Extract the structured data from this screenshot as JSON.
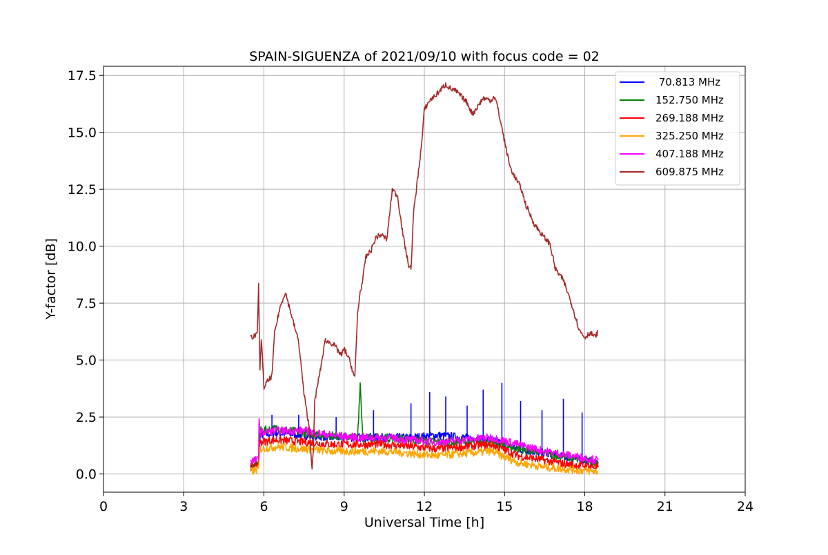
{
  "chart_data": {
    "type": "line",
    "title": "SPAIN-SIGUENZA of 2021/09/10 with focus code = 02",
    "xlabel": "Universal Time [h]",
    "ylabel": "Y-factor [dB]",
    "xlim": [
      0,
      24
    ],
    "ylim": [
      -0.8,
      17.9
    ],
    "xticks": [
      0,
      3,
      6,
      9,
      12,
      15,
      18,
      21,
      24
    ],
    "xtick_labels": [
      "0",
      "3",
      "6",
      "9",
      "12",
      "15",
      "18",
      "21",
      "24"
    ],
    "yticks": [
      0,
      2.5,
      5,
      7.5,
      10,
      12.5,
      15,
      17.5
    ],
    "ytick_labels": [
      "0.0",
      "2.5",
      "5.0",
      "7.5",
      "10.0",
      "12.5",
      "15.0",
      "17.5"
    ],
    "grid": true,
    "legend_position": "top-right",
    "series": [
      {
        "name": " 70.813 MHz",
        "color": "#0000ff",
        "x": [
          5.5,
          5.8,
          5.85,
          6.5,
          7.5,
          8.5,
          9.5,
          10.5,
          11.5,
          12.5,
          13.5,
          14.5,
          15.5,
          16.5,
          17.5,
          18.5
        ],
        "y": [
          0.3,
          0.4,
          1.7,
          1.8,
          1.7,
          1.6,
          1.6,
          1.6,
          1.6,
          1.7,
          1.6,
          1.5,
          1.1,
          0.9,
          0.7,
          0.5
        ],
        "spikes": [
          [
            6.3,
            2.6
          ],
          [
            7.3,
            2.6
          ],
          [
            8.7,
            2.5
          ],
          [
            10.1,
            2.8
          ],
          [
            11.5,
            3.1
          ],
          [
            12.2,
            3.6
          ],
          [
            12.8,
            3.4
          ],
          [
            13.6,
            3.0
          ],
          [
            14.2,
            3.7
          ],
          [
            14.9,
            4.0
          ],
          [
            15.6,
            3.2
          ],
          [
            16.4,
            2.8
          ],
          [
            17.2,
            3.3
          ],
          [
            17.9,
            2.7
          ]
        ]
      },
      {
        "name": "152.750 MHz",
        "color": "#008000",
        "x": [
          5.5,
          5.8,
          5.85,
          6.5,
          7.5,
          8.5,
          9.5,
          9.6,
          9.7,
          10.5,
          11.5,
          12.5,
          13.5,
          14.5,
          15.5,
          16.5,
          17.5,
          18.5
        ],
        "y": [
          0.3,
          0.4,
          1.9,
          2.0,
          1.8,
          1.7,
          1.6,
          4.0,
          1.6,
          1.6,
          1.5,
          1.4,
          1.4,
          1.4,
          1.1,
          0.9,
          0.7,
          0.5
        ],
        "spikes": []
      },
      {
        "name": "269.188 MHz",
        "color": "#ff0000",
        "x": [
          5.5,
          5.8,
          5.85,
          6.5,
          7.5,
          8.5,
          9.5,
          10.5,
          11.5,
          12.5,
          13.5,
          14.5,
          15.5,
          16.5,
          17.5,
          18.5
        ],
        "y": [
          0.3,
          0.4,
          1.4,
          1.5,
          1.4,
          1.3,
          1.3,
          1.3,
          1.2,
          1.1,
          1.2,
          1.3,
          0.8,
          0.6,
          0.4,
          0.3
        ],
        "spikes": []
      },
      {
        "name": "325.250 MHz",
        "color": "#ffa500",
        "x": [
          5.5,
          5.8,
          5.85,
          6.5,
          7.5,
          8.5,
          9.5,
          10.5,
          11.5,
          12.5,
          13.5,
          14.5,
          15.5,
          16.5,
          17.5,
          18.5
        ],
        "y": [
          0.1,
          0.2,
          1.1,
          1.2,
          1.1,
          1.0,
          1.0,
          1.0,
          0.9,
          0.8,
          0.9,
          1.0,
          0.5,
          0.3,
          0.2,
          0.1
        ],
        "spikes": []
      },
      {
        "name": "407.188 MHz",
        "color": "#ff00ff",
        "x": [
          5.5,
          5.8,
          5.82,
          5.85,
          6.5,
          7.5,
          8.5,
          9.5,
          10.5,
          11.5,
          12.5,
          13.5,
          14.5,
          15.5,
          16.5,
          17.5,
          18.5
        ],
        "y": [
          0.6,
          0.6,
          2.6,
          1.8,
          1.9,
          1.9,
          1.7,
          1.6,
          1.6,
          1.5,
          1.4,
          1.5,
          1.6,
          1.3,
          1.0,
          0.8,
          0.6
        ],
        "spikes": []
      },
      {
        "name": "609.875 MHz",
        "color": "#a52a2a",
        "x": [
          5.5,
          5.75,
          5.8,
          5.85,
          5.9,
          6.0,
          6.1,
          6.3,
          6.4,
          6.6,
          6.8,
          7.0,
          7.3,
          7.5,
          7.7,
          7.8,
          7.85,
          7.9,
          8.1,
          8.3,
          8.4,
          8.6,
          8.9,
          9.0,
          9.2,
          9.4,
          9.5,
          9.6,
          9.7,
          9.8,
          10.0,
          10.2,
          10.4,
          10.6,
          10.8,
          11.0,
          11.2,
          11.4,
          11.5,
          11.6,
          11.8,
          11.9,
          12.0,
          12.2,
          12.4,
          12.8,
          13.0,
          13.2,
          13.6,
          13.8,
          14.2,
          14.5,
          14.6,
          14.7,
          14.9,
          15.0,
          15.2,
          15.4,
          15.6,
          15.8,
          16.1,
          16.4,
          16.7,
          16.9,
          17.2,
          17.5,
          17.8,
          18.0,
          18.2,
          18.3,
          18.4,
          18.5
        ],
        "y": [
          6.0,
          6.1,
          8.3,
          4.5,
          6.0,
          3.8,
          4.0,
          4.3,
          6.2,
          7.3,
          8.0,
          7.1,
          5.8,
          3.5,
          2.0,
          0.2,
          1.0,
          3.2,
          4.5,
          5.9,
          5.8,
          5.7,
          5.2,
          5.5,
          5.0,
          4.2,
          7.0,
          8.0,
          8.5,
          9.5,
          9.8,
          10.4,
          10.5,
          10.3,
          12.5,
          12.2,
          10.5,
          9.2,
          9.0,
          11.5,
          13.5,
          14.5,
          16.0,
          16.4,
          16.6,
          17.1,
          16.9,
          16.8,
          16.3,
          15.8,
          16.5,
          16.4,
          16.6,
          16.3,
          15.2,
          14.6,
          13.5,
          13.0,
          12.6,
          11.8,
          11.0,
          10.5,
          10.1,
          9.0,
          8.5,
          7.5,
          6.3,
          6.0,
          6.2,
          6.1,
          6.0,
          6.3
        ],
        "spikes": []
      }
    ]
  }
}
